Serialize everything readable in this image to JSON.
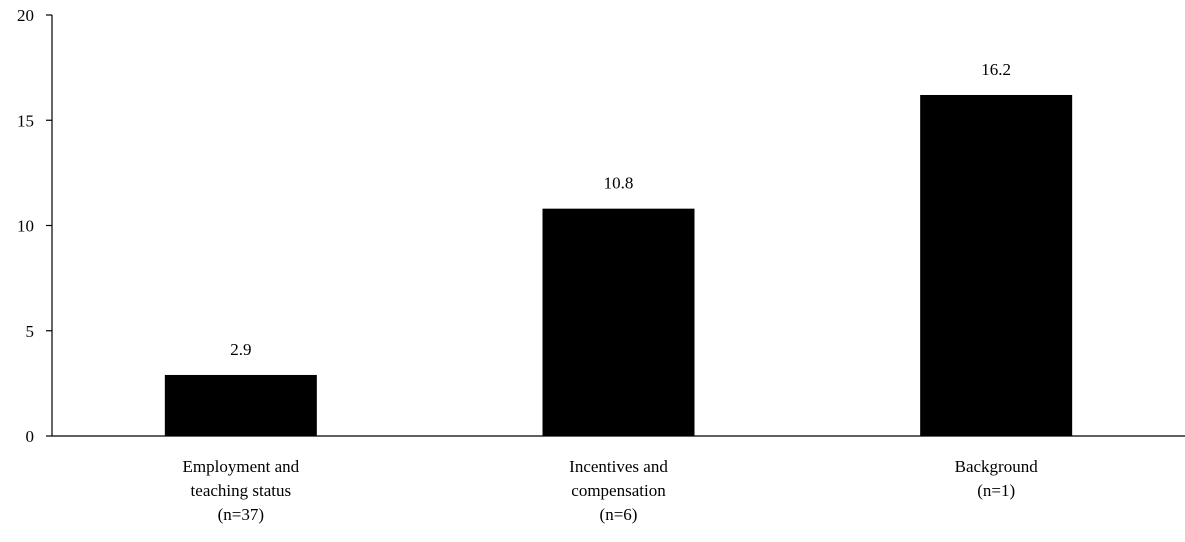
{
  "chart_data": {
    "type": "bar",
    "categories": [
      [
        "Employment and",
        "teaching status",
        "(n=37)"
      ],
      [
        "Incentives and",
        "compensation",
        "(n=6)"
      ],
      [
        "Background",
        "(n=1)"
      ]
    ],
    "values": [
      2.9,
      10.8,
      16.2
    ],
    "value_labels": [
      "2.9",
      "10.8",
      "16.2"
    ],
    "yticks": [
      "0",
      "5",
      "10",
      "15",
      "20"
    ],
    "ylim": [
      0,
      20
    ],
    "title": "",
    "xlabel": "",
    "ylabel": "",
    "grid": false,
    "bar_color": "#000000"
  }
}
